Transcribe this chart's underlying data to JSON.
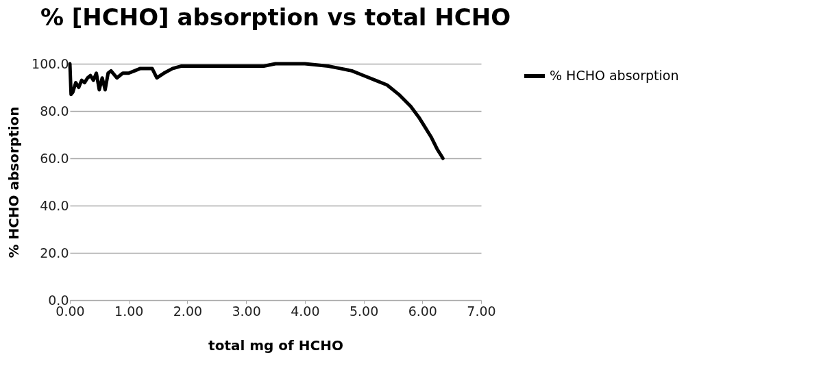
{
  "chart_data": {
    "type": "line",
    "title": "% [HCHO] absorption vs total HCHO",
    "xlabel": "total mg of HCHO",
    "ylabel": "% HCHO absorption",
    "xlim": [
      0,
      7
    ],
    "xticks": [
      {
        "value": 0,
        "label": "0.00"
      },
      {
        "value": 1,
        "label": "1.00"
      },
      {
        "value": 2,
        "label": "2.00"
      },
      {
        "value": 3,
        "label": "3.00"
      },
      {
        "value": 4,
        "label": "4.00"
      },
      {
        "value": 5,
        "label": "5.00"
      },
      {
        "value": 6,
        "label": "6.00"
      },
      {
        "value": 7,
        "label": "7.00"
      }
    ],
    "ylim": [
      0,
      100
    ],
    "yticks": [
      {
        "value": 0,
        "label": "0.0"
      },
      {
        "value": 20,
        "label": "20.0"
      },
      {
        "value": 40,
        "label": "40.0"
      },
      {
        "value": 60,
        "label": "60.0"
      },
      {
        "value": 80,
        "label": "80.0"
      },
      {
        "value": 100,
        "label": "100.0"
      }
    ],
    "grid": "y",
    "legend": "right",
    "marker": "none",
    "series": [
      {
        "name": "% HCHO absorption",
        "color": "#000000",
        "x": [
          0,
          0.02,
          0.05,
          0.1,
          0.15,
          0.2,
          0.25,
          0.3,
          0.35,
          0.4,
          0.45,
          0.5,
          0.55,
          0.6,
          0.65,
          0.7,
          0.8,
          0.9,
          1.0,
          1.1,
          1.2,
          1.3,
          1.4,
          1.48,
          1.6,
          1.75,
          1.9,
          2.1,
          2.5,
          3.0,
          3.3,
          3.5,
          4.0,
          4.2,
          4.4,
          4.6,
          4.8,
          5.0,
          5.2,
          5.4,
          5.6,
          5.8,
          5.95,
          6.05,
          6.15,
          6.25,
          6.35
        ],
        "values": [
          100,
          87,
          88,
          92,
          90,
          93,
          92,
          94,
          95,
          93,
          96,
          89,
          94,
          89,
          96,
          97,
          94,
          96,
          96,
          97,
          98,
          98,
          98,
          94,
          96,
          98,
          99,
          99,
          99,
          99,
          99,
          100,
          100,
          99.5,
          99,
          98,
          97,
          95,
          93,
          91,
          87,
          82,
          77,
          73,
          69,
          64,
          60
        ]
      }
    ]
  }
}
